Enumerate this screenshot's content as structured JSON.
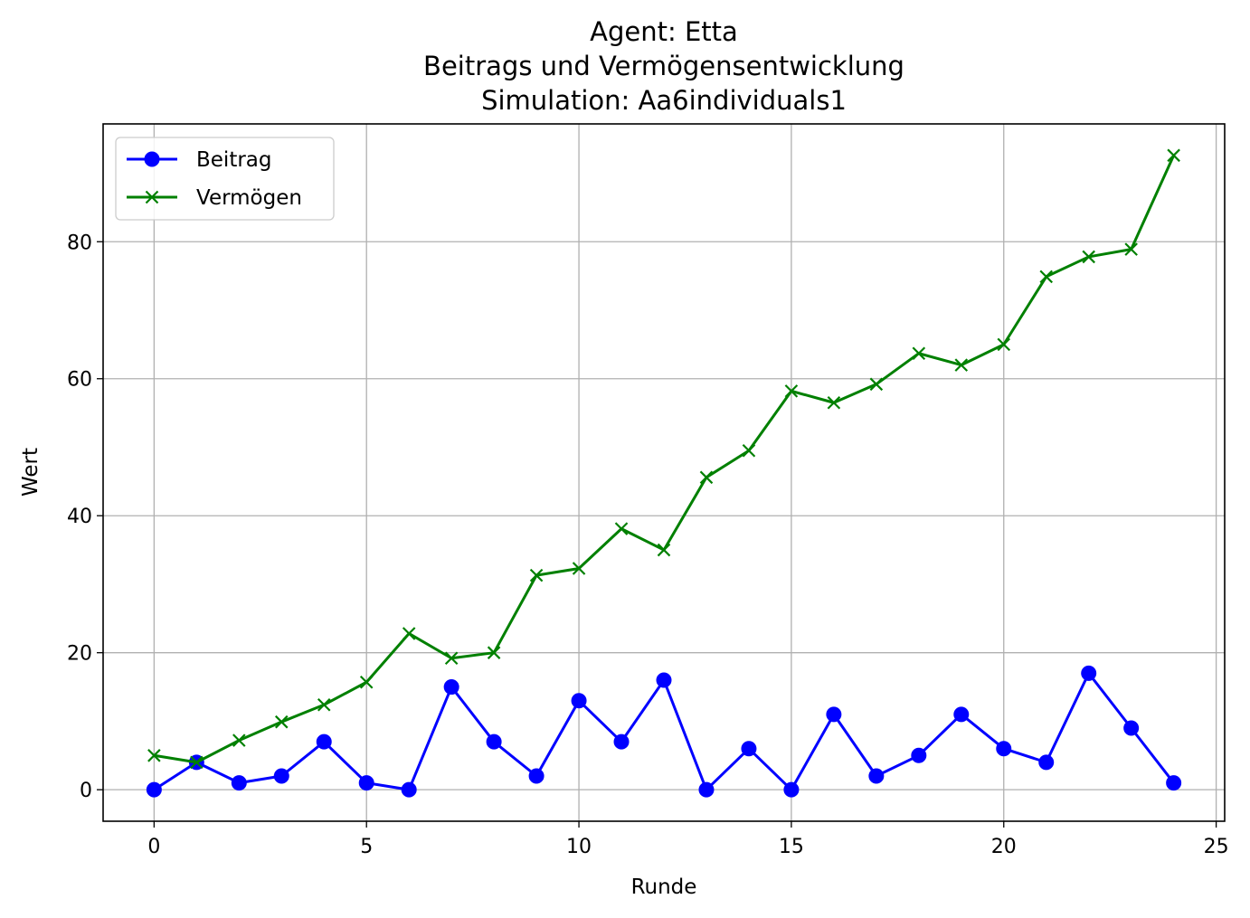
{
  "chart_data": {
    "type": "line",
    "title_lines": [
      "Agent: Etta",
      "Beitrags und Vermögensentwicklung",
      "Simulation: Aa6individuals1"
    ],
    "xlabel": "Runde",
    "ylabel": "Wert",
    "xlim": [
      -1.2,
      25.2
    ],
    "ylim": [
      -4.6,
      97.2
    ],
    "xticks": [
      0,
      5,
      10,
      15,
      20,
      25
    ],
    "yticks": [
      0,
      20,
      40,
      60,
      80
    ],
    "grid": true,
    "legend_position": "upper-left",
    "x": [
      0,
      1,
      2,
      3,
      4,
      5,
      6,
      7,
      8,
      9,
      10,
      11,
      12,
      13,
      14,
      15,
      16,
      17,
      18,
      19,
      20,
      21,
      22,
      23,
      24
    ],
    "series": [
      {
        "name": "Beitrag",
        "color": "#0000ff",
        "marker": "circle",
        "values": [
          0,
          4,
          1,
          2,
          7,
          1,
          0,
          15,
          7,
          2,
          13,
          7,
          16,
          0,
          6,
          0,
          11,
          2,
          5,
          11,
          6,
          4,
          17,
          9,
          1
        ]
      },
      {
        "name": "Vermögen",
        "color": "#008000",
        "marker": "x",
        "values": [
          5,
          4,
          7.2,
          9.9,
          12.4,
          15.7,
          22.8,
          19.2,
          20,
          31.3,
          32.3,
          38.1,
          35,
          45.6,
          49.5,
          58.2,
          56.5,
          59.2,
          63.7,
          62,
          65,
          74.9,
          77.8,
          78.9,
          92.6
        ]
      }
    ]
  }
}
